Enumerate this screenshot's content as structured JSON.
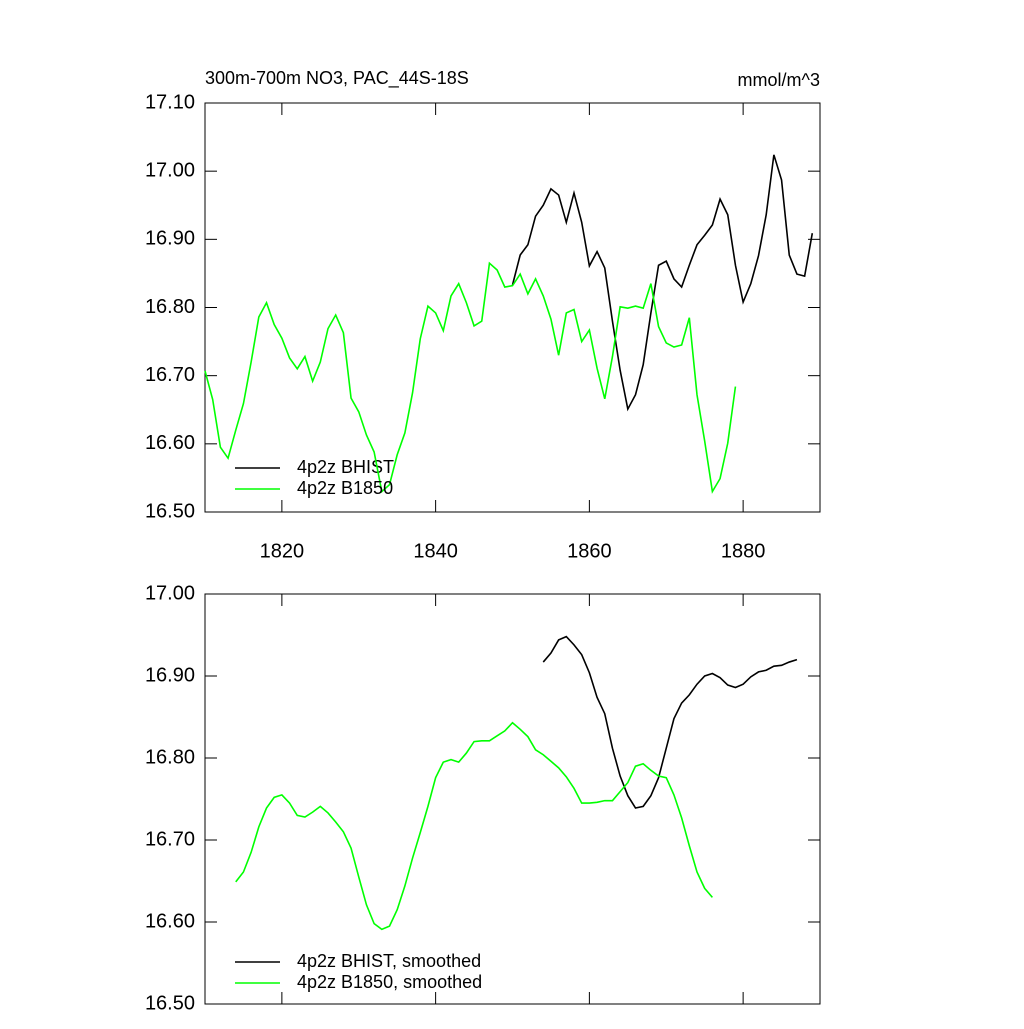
{
  "chart_data": [
    {
      "type": "line",
      "title": "300m-700m NO3, PAC_44S-18S",
      "units": "mmol/m^3",
      "xlim": [
        1810,
        1890
      ],
      "xticks": [
        1820,
        1840,
        1860,
        1880
      ],
      "ylim": [
        16.5,
        17.1
      ],
      "yticks": [
        {
          "value": 16.5,
          "label": "16.50"
        },
        {
          "value": 16.6,
          "label": "16.60"
        },
        {
          "value": 16.7,
          "label": "16.70"
        },
        {
          "value": 16.8,
          "label": "16.80"
        },
        {
          "value": 16.9,
          "label": "16.90"
        },
        {
          "value": 17.0,
          "label": "17.00"
        },
        {
          "value": 17.1,
          "label": "17.10"
        }
      ],
      "legend": "lower left",
      "series": [
        {
          "name": "4p2z BHIST",
          "color": "#000000",
          "x": [
            1850,
            1851,
            1852,
            1853,
            1854,
            1855,
            1856,
            1857,
            1858,
            1859,
            1860,
            1861,
            1862,
            1863,
            1864,
            1865,
            1866,
            1867,
            1868,
            1869,
            1870,
            1871,
            1872,
            1873,
            1874,
            1875,
            1876,
            1877,
            1878,
            1879,
            1880,
            1881,
            1882,
            1883,
            1884,
            1885,
            1886,
            1887,
            1888,
            1889
          ],
          "values": [
            16.833,
            16.877,
            16.892,
            16.934,
            16.95,
            16.974,
            16.965,
            16.925,
            16.968,
            16.925,
            16.861,
            16.882,
            16.858,
            16.78,
            16.708,
            16.651,
            16.672,
            16.716,
            16.792,
            16.862,
            16.868,
            16.842,
            16.83,
            16.862,
            16.892,
            16.906,
            16.921,
            16.959,
            16.936,
            16.862,
            16.808,
            16.835,
            16.876,
            16.936,
            17.024,
            16.987,
            16.877,
            16.849,
            16.846,
            16.909
          ]
        },
        {
          "name": "4p2z B1850",
          "color": "#00ff00",
          "x": [
            1810,
            1811,
            1812,
            1813,
            1814,
            1815,
            1816,
            1817,
            1818,
            1819,
            1820,
            1821,
            1822,
            1823,
            1824,
            1825,
            1826,
            1827,
            1828,
            1829,
            1830,
            1831,
            1832,
            1833,
            1834,
            1835,
            1836,
            1837,
            1838,
            1839,
            1840,
            1841,
            1842,
            1843,
            1844,
            1845,
            1846,
            1847,
            1848,
            1849,
            1850,
            1851,
            1852,
            1853,
            1854,
            1855,
            1856,
            1857,
            1858,
            1859,
            1860,
            1861,
            1862,
            1863,
            1864,
            1865,
            1866,
            1867,
            1868,
            1869,
            1870,
            1871,
            1872,
            1873,
            1874,
            1875,
            1876,
            1877,
            1878,
            1879
          ],
          "values": [
            16.707,
            16.665,
            16.595,
            16.579,
            16.62,
            16.659,
            16.72,
            16.786,
            16.807,
            16.775,
            16.755,
            16.726,
            16.71,
            16.728,
            16.692,
            16.72,
            16.769,
            16.789,
            16.763,
            16.667,
            16.647,
            16.613,
            16.588,
            16.53,
            16.54,
            16.584,
            16.616,
            16.675,
            16.754,
            16.802,
            16.792,
            16.766,
            16.817,
            16.835,
            16.807,
            16.773,
            16.78,
            16.865,
            16.855,
            16.83,
            16.832,
            16.849,
            16.82,
            16.842,
            16.817,
            16.783,
            16.73,
            16.792,
            16.797,
            16.75,
            16.767,
            16.711,
            16.666,
            16.728,
            16.801,
            16.799,
            16.802,
            16.799,
            16.835,
            16.772,
            16.748,
            16.742,
            16.745,
            16.785,
            16.672,
            16.604,
            16.53,
            16.549,
            16.601,
            16.684
          ]
        }
      ]
    },
    {
      "type": "line",
      "xlim": [
        1810,
        1890
      ],
      "xticks": [
        1820,
        1840,
        1860,
        1880
      ],
      "ylim": [
        16.5,
        17.0
      ],
      "yticks": [
        {
          "value": 16.5,
          "label": "16.50"
        },
        {
          "value": 16.6,
          "label": "16.60"
        },
        {
          "value": 16.7,
          "label": "16.70"
        },
        {
          "value": 16.8,
          "label": "16.80"
        },
        {
          "value": 16.9,
          "label": "16.90"
        },
        {
          "value": 17.0,
          "label": "17.00"
        }
      ],
      "legend": "lower left",
      "series": [
        {
          "name": "4p2z BHIST, smoothed",
          "color": "#000000",
          "x": [
            1854,
            1855,
            1856,
            1857,
            1858,
            1859,
            1860,
            1861,
            1862,
            1863,
            1864,
            1865,
            1866,
            1867,
            1868,
            1869,
            1870,
            1871,
            1872,
            1873,
            1874,
            1875,
            1876,
            1877,
            1878,
            1879,
            1880,
            1881,
            1882,
            1883,
            1884,
            1885,
            1886,
            1887
          ],
          "values": [
            16.917,
            16.928,
            16.944,
            16.948,
            16.938,
            16.926,
            16.904,
            16.874,
            16.854,
            16.812,
            16.778,
            16.754,
            16.739,
            16.741,
            16.754,
            16.776,
            16.812,
            16.848,
            16.867,
            16.877,
            16.89,
            16.9,
            16.903,
            16.898,
            16.889,
            16.886,
            16.89,
            16.899,
            16.905,
            16.907,
            16.912,
            16.913,
            16.917,
            16.92
          ]
        },
        {
          "name": "4p2z B1850, smoothed",
          "color": "#00ff00",
          "x": [
            1814,
            1815,
            1816,
            1817,
            1818,
            1819,
            1820,
            1821,
            1822,
            1823,
            1824,
            1825,
            1826,
            1827,
            1828,
            1829,
            1830,
            1831,
            1832,
            1833,
            1834,
            1835,
            1836,
            1837,
            1838,
            1839,
            1840,
            1841,
            1842,
            1843,
            1844,
            1845,
            1846,
            1847,
            1848,
            1849,
            1850,
            1851,
            1852,
            1853,
            1854,
            1855,
            1856,
            1857,
            1858,
            1859,
            1860,
            1861,
            1862,
            1863,
            1864,
            1865,
            1866,
            1867,
            1868,
            1869,
            1870,
            1871,
            1872,
            1873,
            1874,
            1875,
            1876
          ],
          "values": [
            16.649,
            16.661,
            16.685,
            16.716,
            16.739,
            16.752,
            16.755,
            16.745,
            16.73,
            16.728,
            16.734,
            16.741,
            16.733,
            16.722,
            16.71,
            16.69,
            16.655,
            16.621,
            16.598,
            16.591,
            16.595,
            16.615,
            16.644,
            16.678,
            16.709,
            16.741,
            16.776,
            16.795,
            16.798,
            16.795,
            16.806,
            16.82,
            16.821,
            16.821,
            16.827,
            16.833,
            16.843,
            16.835,
            16.826,
            16.81,
            16.804,
            16.796,
            16.788,
            16.777,
            16.763,
            16.745,
            16.745,
            16.746,
            16.748,
            16.748,
            16.759,
            16.77,
            16.79,
            16.793,
            16.785,
            16.778,
            16.776,
            16.755,
            16.727,
            16.693,
            16.661,
            16.641,
            16.63
          ]
        }
      ]
    }
  ]
}
